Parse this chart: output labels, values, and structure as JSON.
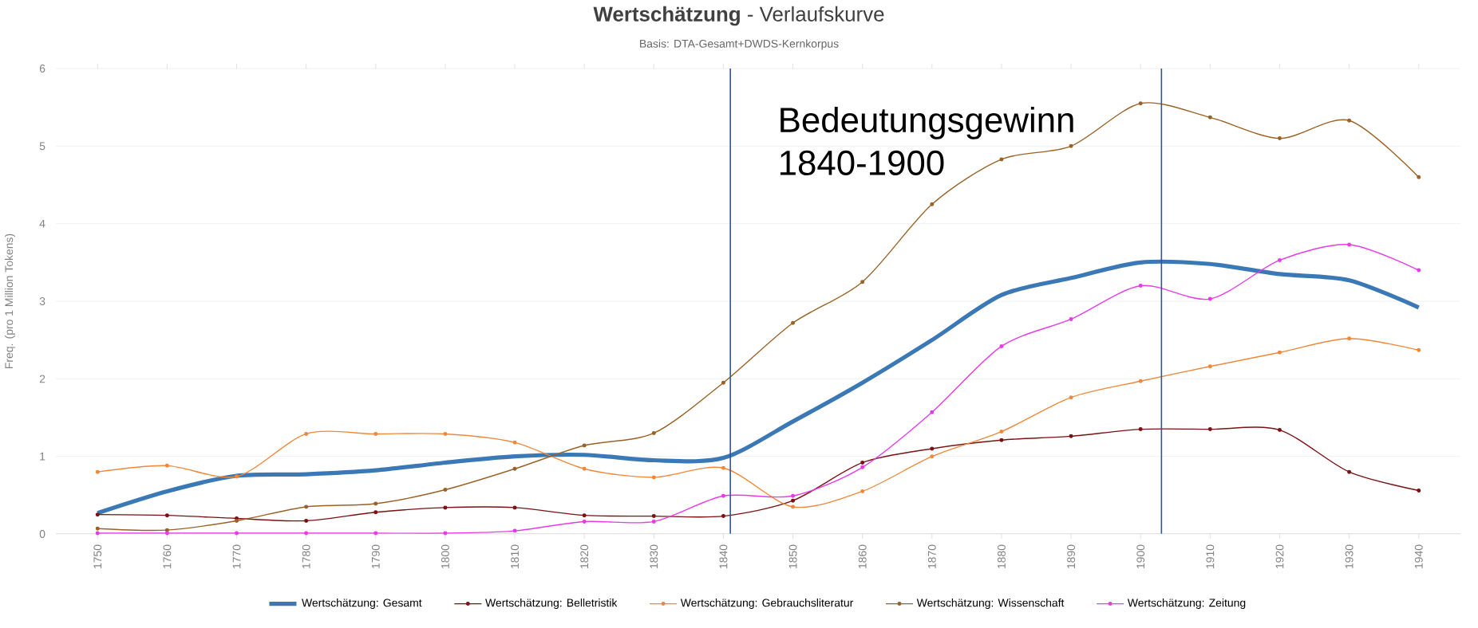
{
  "chart_data": {
    "type": "line",
    "title": "**Wertschätzung** - Verlaufskurve",
    "subtitle": "Basis: DTA-Gesamt+DWDS-Kernkorpus",
    "ylabel": "Freq. (pro 1 Million Tokens)",
    "x": [
      1750,
      1760,
      1770,
      1780,
      1790,
      1800,
      1810,
      1820,
      1830,
      1840,
      1850,
      1860,
      1870,
      1880,
      1890,
      1900,
      1910,
      1920,
      1930,
      1940
    ],
    "xlim": [
      1744,
      1946
    ],
    "xticks": [
      1750,
      1760,
      1770,
      1780,
      1790,
      1800,
      1810,
      1820,
      1830,
      1840,
      1850,
      1860,
      1870,
      1880,
      1890,
      1900,
      1910,
      1920,
      1930,
      1940
    ],
    "ylim": [
      0,
      6
    ],
    "yticks": [
      0,
      1,
      2,
      3,
      4,
      5,
      6
    ],
    "grid": "y",
    "legend": "bottom",
    "marker": "circle",
    "series": [
      {
        "name": "Wertschätzung: Gesamt",
        "color": "#3a79b5",
        "marker": "none",
        "values": [
          0.27,
          0.55,
          0.75,
          0.77,
          0.82,
          0.92,
          1.0,
          1.02,
          0.95,
          0.98,
          1.45,
          1.95,
          2.5,
          3.08,
          3.3,
          3.5,
          3.48,
          3.35,
          3.27,
          2.92
        ]
      },
      {
        "name": "Wertschätzung: Belletristik",
        "color": "#7b1113",
        "values": [
          0.25,
          0.24,
          0.2,
          0.17,
          0.28,
          0.34,
          0.34,
          0.24,
          0.23,
          0.23,
          0.43,
          0.92,
          1.1,
          1.21,
          1.26,
          1.35,
          1.35,
          1.34,
          0.8,
          0.56
        ]
      },
      {
        "name": "Wertschätzung: Gebrauchsliteratur",
        "color": "#f0883a",
        "values": [
          0.8,
          0.88,
          0.74,
          1.29,
          1.29,
          1.29,
          1.18,
          0.84,
          0.73,
          0.85,
          0.35,
          0.55,
          1.0,
          1.32,
          1.76,
          1.97,
          2.16,
          2.34,
          2.52,
          2.37
        ]
      },
      {
        "name": "Wertschätzung: Wissenschaft",
        "color": "#9a6226",
        "values": [
          0.07,
          0.05,
          0.17,
          0.35,
          0.39,
          0.57,
          0.84,
          1.14,
          1.3,
          1.95,
          2.72,
          3.25,
          4.25,
          4.83,
          5.0,
          5.55,
          5.37,
          5.1,
          5.33,
          4.6
        ]
      },
      {
        "name": "Wertschätzung: Zeitung",
        "color": "#e83be8",
        "values": [
          0.01,
          0.01,
          0.01,
          0.01,
          0.01,
          0.01,
          0.04,
          0.16,
          0.16,
          0.49,
          0.49,
          0.86,
          1.57,
          2.42,
          2.77,
          3.2,
          3.03,
          3.53,
          3.73,
          3.4
        ]
      }
    ],
    "ref_lines": [
      {
        "axis": "x",
        "value": 1841,
        "color": "#2f5597"
      },
      {
        "axis": "x",
        "value": 1903,
        "color": "#2f5597"
      }
    ],
    "annotations": [
      "Bedeutungsgewinn 1840-1900"
    ]
  }
}
